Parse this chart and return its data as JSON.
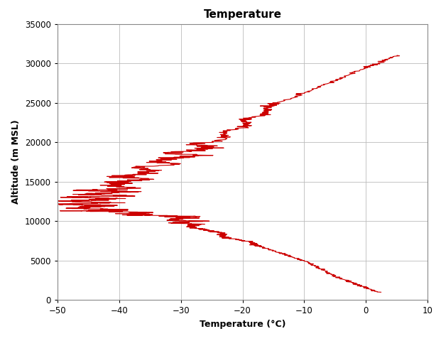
{
  "title": "Temperature",
  "xlabel": "Temperature (°C)",
  "ylabel": "Altitude (m MSL)",
  "xlim": [
    -50,
    10
  ],
  "ylim": [
    0,
    35000
  ],
  "xticks": [
    -50,
    -40,
    -30,
    -20,
    -10,
    0,
    10
  ],
  "yticks": [
    0,
    5000,
    10000,
    15000,
    20000,
    25000,
    30000,
    35000
  ],
  "line_color": "#cc0000",
  "line_width": 0.8,
  "bg_color": "#ffffff",
  "grid_color": "#bbbbbb",
  "title_fontsize": 11,
  "label_fontsize": 9,
  "tick_fontsize": 8.5
}
